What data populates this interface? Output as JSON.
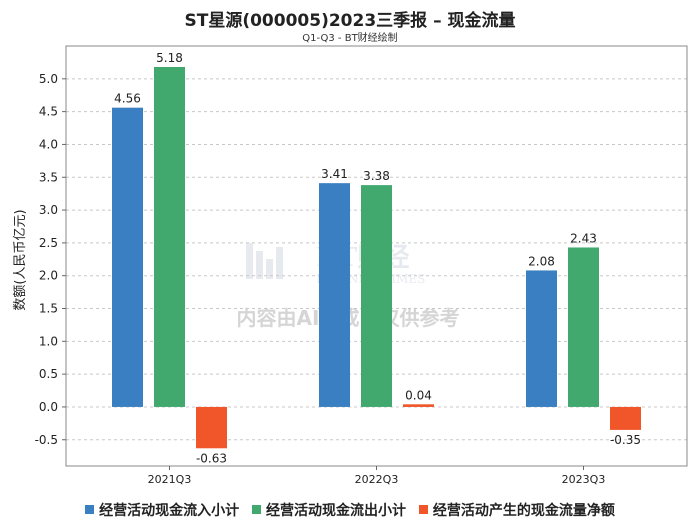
{
  "chart_data": {
    "type": "bar",
    "title": "ST星源(000005)2023三季报 – 现金流量",
    "subtitle": "Q1-Q3 - BT财经绘制",
    "ylabel": "数额(人民币亿元)",
    "xlabel": "",
    "categories": [
      "2021Q3",
      "2022Q3",
      "2023Q3"
    ],
    "series": [
      {
        "name": "经营活动现金流入小计",
        "color": "#3a7fc1",
        "values": [
          4.56,
          3.41,
          2.08
        ],
        "labels": [
          "4.56",
          "3.41",
          "2.08"
        ]
      },
      {
        "name": "经营活动现金流出小计",
        "color": "#41a86e",
        "values": [
          5.18,
          3.38,
          2.43
        ],
        "labels": [
          "5.18",
          "3.38",
          "2.43"
        ]
      },
      {
        "name": "经营活动产生的现金流量净额",
        "color": "#f0562a",
        "values": [
          -0.63,
          0.04,
          -0.35
        ],
        "labels": [
          "-0.63",
          "0.04",
          "-0.35"
        ]
      }
    ],
    "ylim": [
      -0.9,
      5.5
    ],
    "yticks": [
      -0.5,
      0.0,
      0.5,
      1.0,
      1.5,
      2.0,
      2.5,
      3.0,
      3.5,
      4.0,
      4.5,
      5.0
    ],
    "ytick_labels": [
      "-0.5",
      "0.0",
      "0.5",
      "1.0",
      "1.5",
      "2.0",
      "2.5",
      "3.0",
      "3.5",
      "4.0",
      "4.5",
      "5.0"
    ],
    "grid": true,
    "legend_position": "bottom"
  },
  "watermark": {
    "brand": "BT财经",
    "brand_sub": "BUSINESSTIMES",
    "notice": "内容由AI生成，仅供参考"
  }
}
